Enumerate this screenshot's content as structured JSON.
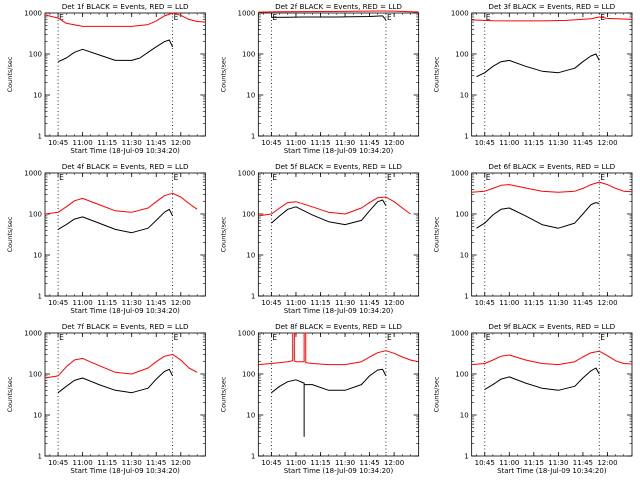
{
  "colors": {
    "events": "#000000",
    "lld": "#ff0000",
    "axis": "#000000",
    "marker": "#000000"
  },
  "chart_data": [
    {
      "type": "line",
      "title": "Det 1f BLACK = Events, RED = LLD",
      "xlabel": "Start Time (18-Jul-09 10:34:20)",
      "ylabel": "Counts/sec",
      "ylog": true,
      "ylim": [
        1,
        1000
      ],
      "yticks": [
        "1",
        "10",
        "100",
        "1000"
      ],
      "xlim": [
        "10:37",
        "12:15"
      ],
      "xticks": [
        "10:45",
        "11:00",
        "11:15",
        "11:30",
        "11:45",
        "12:00"
      ],
      "markers": [
        {
          "time": "10:45",
          "label": "E"
        },
        {
          "time": "11:55",
          "label": "E"
        }
      ],
      "series": [
        {
          "name": "Events",
          "color_key": "events",
          "x": [
            "10:45",
            "10:50",
            "10:55",
            "11:00",
            "11:10",
            "11:20",
            "11:30",
            "11:35",
            "11:40",
            "11:45",
            "11:50",
            "11:53",
            "11:55"
          ],
          "y": [
            65,
            80,
            110,
            130,
            95,
            70,
            70,
            80,
            110,
            150,
            200,
            220,
            150
          ]
        },
        {
          "name": "LLD",
          "color_key": "lld",
          "x": [
            "10:37",
            "10:45",
            "10:50",
            "11:00",
            "11:10",
            "11:20",
            "11:30",
            "11:40",
            "11:45",
            "11:50",
            "11:55",
            "12:00",
            "12:05",
            "12:10",
            "12:15"
          ],
          "y": [
            900,
            750,
            560,
            470,
            470,
            470,
            470,
            520,
            640,
            850,
            1000,
            880,
            700,
            620,
            600
          ]
        }
      ]
    },
    {
      "type": "line",
      "title": "Det 2f BLACK = Events, RED = LLD",
      "xlabel": "Start Time (18-Jul-09 10:34:20)",
      "ylabel": "Counts/sec",
      "ylog": true,
      "ylim": [
        1,
        1000
      ],
      "yticks": [
        "1",
        "10",
        "100",
        "1000"
      ],
      "xlim": [
        "10:37",
        "12:15"
      ],
      "xticks": [
        "10:45",
        "11:00",
        "11:15",
        "11:30",
        "11:45",
        "12:00"
      ],
      "markers": [
        {
          "time": "10:45",
          "label": "E"
        },
        {
          "time": "11:55",
          "label": "E"
        }
      ],
      "series": [
        {
          "name": "Events",
          "color_key": "events",
          "x": [
            "10:45",
            "10:55",
            "11:05",
            "11:15",
            "11:25",
            "11:35",
            "11:45",
            "11:53",
            "11:55"
          ],
          "y": [
            780,
            790,
            800,
            800,
            800,
            810,
            820,
            850,
            680
          ]
        },
        {
          "name": "LLD",
          "color_key": "lld",
          "x": [
            "10:37",
            "10:50",
            "11:05",
            "11:20",
            "11:35",
            "11:50",
            "12:00",
            "12:15"
          ],
          "y": [
            1050,
            1070,
            1080,
            1090,
            1100,
            1120,
            1110,
            1060
          ]
        }
      ]
    },
    {
      "type": "line",
      "title": "Det 3f BLACK = Events, RED = LLD",
      "xlabel": "",
      "ylabel": "Counts/sec",
      "ylog": true,
      "ylim": [
        1,
        1000
      ],
      "yticks": [
        "1",
        "10",
        "100",
        "1000"
      ],
      "xlim": [
        "10:37",
        "12:15"
      ],
      "xticks": [
        "10:45",
        "11:00",
        "11:15",
        "11:30",
        "11:45",
        "12:00"
      ],
      "markers": [
        {
          "time": "10:45",
          "label": "E"
        },
        {
          "time": "11:55",
          "label": "E"
        }
      ],
      "series": [
        {
          "name": "Events",
          "color_key": "events",
          "x": [
            "10:40",
            "10:45",
            "10:50",
            "10:55",
            "11:00",
            "11:10",
            "11:20",
            "11:30",
            "11:40",
            "11:45",
            "11:50",
            "11:53",
            "11:55"
          ],
          "y": [
            28,
            35,
            50,
            65,
            70,
            50,
            38,
            35,
            45,
            65,
            90,
            100,
            70
          ]
        },
        {
          "name": "LLD",
          "color_key": "lld",
          "x": [
            "10:37",
            "10:50",
            "11:05",
            "11:20",
            "11:35",
            "11:50",
            "11:55",
            "12:00",
            "12:15"
          ],
          "y": [
            680,
            650,
            640,
            640,
            660,
            720,
            800,
            740,
            700
          ]
        }
      ]
    },
    {
      "type": "line",
      "title": "Det 4f BLACK = Events, RED = LLD",
      "xlabel": "Start Time (18-Jul-09 10:34:20)",
      "ylabel": "Counts/sec",
      "ylog": true,
      "ylim": [
        1,
        1000
      ],
      "yticks": [
        "1",
        "10",
        "100",
        "1000"
      ],
      "xlim": [
        "10:37",
        "12:15"
      ],
      "xticks": [
        "10:45",
        "11:00",
        "11:15",
        "11:30",
        "11:45",
        "12:00"
      ],
      "markers": [
        {
          "time": "10:45",
          "label": "E"
        },
        {
          "time": "11:55",
          "label": "E"
        }
      ],
      "series": [
        {
          "name": "Events",
          "color_key": "events",
          "x": [
            "10:45",
            "10:50",
            "10:55",
            "11:00",
            "11:10",
            "11:20",
            "11:30",
            "11:40",
            "11:45",
            "11:50",
            "11:53",
            "11:55"
          ],
          "y": [
            42,
            55,
            75,
            85,
            60,
            42,
            35,
            45,
            70,
            110,
            130,
            90
          ]
        },
        {
          "name": "LLD",
          "color_key": "lld",
          "x": [
            "10:37",
            "10:45",
            "10:50",
            "10:55",
            "11:00",
            "11:10",
            "11:20",
            "11:30",
            "11:40",
            "11:45",
            "11:50",
            "11:55",
            "12:00",
            "12:05",
            "12:10"
          ],
          "y": [
            100,
            110,
            150,
            210,
            240,
            170,
            120,
            110,
            140,
            200,
            280,
            320,
            260,
            180,
            130
          ]
        }
      ]
    },
    {
      "type": "line",
      "title": "Det 5f BLACK = Events, RED = LLD",
      "xlabel": "Start Time (18-Jul-09 10:34:20)",
      "ylabel": "Counts/sec",
      "ylog": true,
      "ylim": [
        1,
        1000
      ],
      "yticks": [
        "1",
        "10",
        "100",
        "1000"
      ],
      "xlim": [
        "10:37",
        "12:15"
      ],
      "xticks": [
        "10:45",
        "11:00",
        "11:15",
        "11:30",
        "11:45",
        "12:00"
      ],
      "markers": [
        {
          "time": "10:45",
          "label": "E"
        },
        {
          "time": "11:55",
          "label": "E"
        }
      ],
      "series": [
        {
          "name": "Events",
          "color_key": "events",
          "x": [
            "10:45",
            "10:50",
            "10:55",
            "11:00",
            "11:10",
            "11:20",
            "11:30",
            "11:40",
            "11:45",
            "11:50",
            "11:53",
            "11:55"
          ],
          "y": [
            60,
            90,
            130,
            150,
            95,
            65,
            55,
            70,
            120,
            200,
            220,
            160
          ]
        },
        {
          "name": "LLD",
          "color_key": "lld",
          "x": [
            "10:37",
            "10:45",
            "10:50",
            "10:55",
            "11:00",
            "11:10",
            "11:20",
            "11:30",
            "11:40",
            "11:45",
            "11:50",
            "11:55",
            "12:00",
            "12:05",
            "12:10"
          ],
          "y": [
            90,
            100,
            140,
            190,
            200,
            150,
            110,
            100,
            140,
            190,
            250,
            260,
            200,
            140,
            100
          ]
        }
      ]
    },
    {
      "type": "line",
      "title": "Det 6f BLACK = Events, RED = LLD",
      "xlabel": "",
      "ylabel": "Counts/sec",
      "ylog": true,
      "ylim": [
        1,
        1000
      ],
      "yticks": [
        "1",
        "10",
        "100",
        "1000"
      ],
      "xlim": [
        "10:37",
        "12:15"
      ],
      "xticks": [
        "10:45",
        "11:00",
        "11:15",
        "11:30",
        "11:45",
        "12:00"
      ],
      "markers": [
        {
          "time": "10:45",
          "label": "E"
        },
        {
          "time": "11:55",
          "label": "E"
        }
      ],
      "series": [
        {
          "name": "Events",
          "color_key": "events",
          "x": [
            "10:40",
            "10:45",
            "10:50",
            "10:55",
            "11:00",
            "11:10",
            "11:20",
            "11:30",
            "11:40",
            "11:45",
            "11:50",
            "11:53",
            "11:55"
          ],
          "y": [
            45,
            60,
            95,
            130,
            140,
            90,
            55,
            45,
            60,
            100,
            170,
            190,
            180
          ]
        },
        {
          "name": "LLD",
          "color_key": "lld",
          "x": [
            "10:37",
            "10:45",
            "10:50",
            "10:55",
            "11:00",
            "11:10",
            "11:20",
            "11:30",
            "11:40",
            "11:45",
            "11:50",
            "11:55",
            "12:00",
            "12:05",
            "12:10",
            "12:15"
          ],
          "y": [
            340,
            360,
            420,
            500,
            520,
            430,
            360,
            340,
            360,
            420,
            520,
            600,
            520,
            420,
            360,
            350
          ]
        }
      ]
    },
    {
      "type": "line",
      "title": "Det 7f BLACK = Events, RED = LLD",
      "xlabel": "Start Time (18-Jul-09 10:34:20)",
      "ylabel": "Counts/sec",
      "ylog": true,
      "ylim": [
        1,
        1000
      ],
      "yticks": [
        "1",
        "10",
        "100",
        "1000"
      ],
      "xlim": [
        "10:37",
        "12:15"
      ],
      "xticks": [
        "10:45",
        "11:00",
        "11:15",
        "11:30",
        "11:45",
        "12:00"
      ],
      "markers": [
        {
          "time": "10:45",
          "label": "E"
        },
        {
          "time": "11:55",
          "label": "E"
        }
      ],
      "series": [
        {
          "name": "Events",
          "color_key": "events",
          "x": [
            "10:45",
            "10:50",
            "10:55",
            "11:00",
            "11:10",
            "11:20",
            "11:30",
            "11:40",
            "11:45",
            "11:50",
            "11:53",
            "11:55"
          ],
          "y": [
            35,
            50,
            70,
            80,
            55,
            40,
            35,
            45,
            75,
            115,
            130,
            90
          ]
        },
        {
          "name": "LLD",
          "color_key": "lld",
          "x": [
            "10:37",
            "10:45",
            "10:50",
            "10:55",
            "11:00",
            "11:10",
            "11:20",
            "11:30",
            "11:40",
            "11:45",
            "11:50",
            "11:55",
            "12:00",
            "12:05",
            "12:10"
          ],
          "y": [
            80,
            90,
            150,
            220,
            240,
            160,
            110,
            100,
            140,
            200,
            270,
            300,
            220,
            140,
            110
          ]
        }
      ]
    },
    {
      "type": "line",
      "title": "Det 8f BLACK = Events, RED = LLD",
      "xlabel": "Start Time (18-Jul-09 10:34:20)",
      "ylabel": "Counts/sec",
      "ylog": true,
      "ylim": [
        1,
        1000
      ],
      "yticks": [
        "1",
        "10",
        "100",
        "1000"
      ],
      "xlim": [
        "10:37",
        "12:15"
      ],
      "xticks": [
        "10:45",
        "11:00",
        "11:15",
        "11:30",
        "11:45",
        "12:00"
      ],
      "markers": [
        {
          "time": "10:45",
          "label": "E"
        },
        {
          "time": "11:55",
          "label": "E"
        }
      ],
      "series": [
        {
          "name": "Events",
          "color_key": "events",
          "x": [
            "10:45",
            "10:50",
            "10:55",
            "11:00",
            "11:05",
            "11:05",
            "11:05",
            "11:10",
            "11:20",
            "11:30",
            "11:40",
            "11:45",
            "11:50",
            "11:53",
            "11:55"
          ],
          "y": [
            35,
            50,
            65,
            72,
            60,
            3,
            55,
            55,
            40,
            40,
            55,
            90,
            125,
            130,
            90
          ]
        },
        {
          "name": "LLD",
          "color_key": "lld",
          "x": [
            "10:37",
            "10:45",
            "10:50",
            "10:55",
            "10:58",
            "10:58",
            "10:59",
            "10:59",
            "11:00",
            "11:05",
            "11:05",
            "11:06",
            "11:06",
            "11:10",
            "11:20",
            "11:30",
            "11:40",
            "11:45",
            "11:50",
            "11:55",
            "12:00",
            "12:05",
            "12:10",
            "12:15"
          ],
          "y": [
            170,
            180,
            190,
            200,
            210,
            1000,
            1000,
            210,
            200,
            200,
            1000,
            1000,
            190,
            180,
            170,
            170,
            200,
            260,
            330,
            370,
            320,
            260,
            220,
            200
          ]
        }
      ]
    },
    {
      "type": "line",
      "title": "Det 9f BLACK = Events, RED = LLD",
      "xlabel": "Start Time (18-Jul-09 10:34:20)",
      "ylabel": "Counts/sec",
      "ylog": true,
      "ylim": [
        1,
        1000
      ],
      "yticks": [
        "1",
        "10",
        "100",
        "1000"
      ],
      "xlim": [
        "10:37",
        "12:15"
      ],
      "xticks": [
        "10:45",
        "11:00",
        "11:15",
        "11:30",
        "11:45",
        "12:00"
      ],
      "markers": [
        {
          "time": "10:45",
          "label": "E"
        },
        {
          "time": "11:55",
          "label": "E"
        }
      ],
      "series": [
        {
          "name": "Events",
          "color_key": "events",
          "x": [
            "10:45",
            "10:50",
            "10:55",
            "11:00",
            "11:10",
            "11:20",
            "11:30",
            "11:40",
            "11:45",
            "11:50",
            "11:53",
            "11:55"
          ],
          "y": [
            42,
            55,
            75,
            85,
            60,
            45,
            40,
            50,
            80,
            120,
            140,
            100
          ]
        },
        {
          "name": "LLD",
          "color_key": "lld",
          "x": [
            "10:37",
            "10:45",
            "10:50",
            "10:55",
            "11:00",
            "11:10",
            "11:20",
            "11:30",
            "11:40",
            "11:45",
            "11:50",
            "11:55",
            "12:00",
            "12:05",
            "12:10",
            "12:15"
          ],
          "y": [
            170,
            180,
            220,
            270,
            290,
            220,
            180,
            170,
            200,
            260,
            330,
            360,
            280,
            210,
            180,
            175
          ]
        }
      ]
    }
  ]
}
